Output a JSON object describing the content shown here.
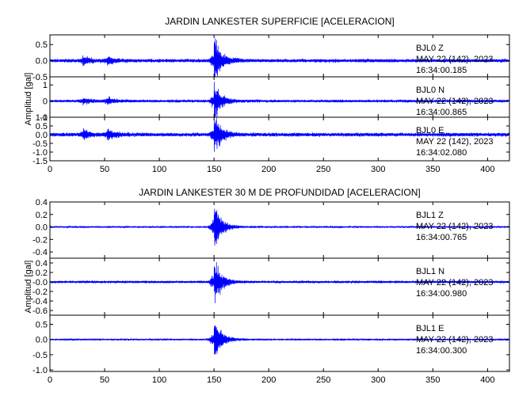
{
  "chart_data": [
    {
      "type": "line",
      "title": "JARDIN LANKESTER SUPERFICIE [ACELERACION]",
      "ylabel": "Amplitud [gal]",
      "xlabel": "",
      "xlim": [
        0,
        420
      ],
      "x_ticks": [
        "0",
        "50",
        "100",
        "150",
        "200",
        "250",
        "300",
        "350",
        "400"
      ],
      "series_color": "#0000ff",
      "panels": [
        {
          "name": "BJL0 Z",
          "station": "BJL0",
          "component": "Z",
          "date": "MAY 22 (142), 2023",
          "time": "16:34:00.185",
          "ylim": [
            -0.5,
            0.8
          ],
          "y_ticks": [
            "0.5",
            "0.0",
            "-0.5"
          ],
          "noise": 0.05,
          "events": [
            {
              "t": 30,
              "amp": 0.12
            },
            {
              "t": 52,
              "amp": 0.1
            },
            {
              "t": 150,
              "amp": 0.7
            }
          ]
        },
        {
          "name": "BJL0 N",
          "station": "BJL0",
          "component": "N",
          "date": "MAY 22 (142), 2023",
          "time": "16:34:00.865",
          "ylim": [
            -1.0,
            1.5
          ],
          "y_ticks": [
            "1",
            "0",
            "-1"
          ],
          "noise": 0.08,
          "events": [
            {
              "t": 30,
              "amp": 0.2
            },
            {
              "t": 52,
              "amp": 0.25
            },
            {
              "t": 150,
              "amp": 1.1
            }
          ]
        },
        {
          "name": "BJL0 E",
          "station": "BJL0",
          "component": "E",
          "date": "MAY 22 (142), 2023",
          "time": "16:34:02.080",
          "ylim": [
            -1.5,
            1.0
          ],
          "y_ticks": [
            "1.0",
            "0.5",
            "0.0",
            "-0.5",
            "-1.0",
            "-1.5"
          ],
          "noise": 0.1,
          "events": [
            {
              "t": 30,
              "amp": 0.25
            },
            {
              "t": 52,
              "amp": 0.3
            },
            {
              "t": 150,
              "amp": 1.0
            }
          ]
        }
      ]
    },
    {
      "type": "line",
      "title": "JARDIN LANKESTER 30 M DE PROFUNDIDAD [ACELERACION]",
      "ylabel": "Amplitud [gal]",
      "xlabel": "",
      "xlim": [
        0,
        420
      ],
      "x_ticks": [
        "0",
        "50",
        "100",
        "150",
        "200",
        "250",
        "300",
        "350",
        "400"
      ],
      "series_color": "#0000ff",
      "panels": [
        {
          "name": "BJL1 Z",
          "station": "BJL1",
          "component": "Z",
          "date": "MAY 22 (142), 2023",
          "time": "16:34:00.765",
          "ylim": [
            -0.5,
            0.4
          ],
          "y_ticks": [
            "0.4",
            "0.2",
            "0.0",
            "-0.2",
            "-0.4"
          ],
          "noise": 0.015,
          "events": [
            {
              "t": 150,
              "amp": 0.38
            }
          ]
        },
        {
          "name": "BJL1 N",
          "station": "BJL1",
          "component": "N",
          "date": "MAY 22 (142), 2023",
          "time": "16:34:00.980",
          "ylim": [
            -0.7,
            0.5
          ],
          "y_ticks": [
            "0.4",
            "0.2",
            "-0.0",
            "-0.2",
            "-0.4",
            "-0.6"
          ],
          "noise": 0.025,
          "events": [
            {
              "t": 150,
              "amp": 0.45
            }
          ]
        },
        {
          "name": "BJL1 E",
          "station": "BJL1",
          "component": "E",
          "date": "MAY 22 (142), 2023",
          "time": "16:34:00.300",
          "ylim": [
            -1.05,
            0.8
          ],
          "y_ticks": [
            "0.5",
            "0.0",
            "-0.5",
            "-1.0"
          ],
          "noise": 0.03,
          "events": [
            {
              "t": 150,
              "amp": 0.75
            }
          ]
        }
      ]
    }
  ]
}
